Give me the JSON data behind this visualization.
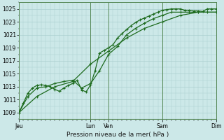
{
  "background_color": "#cce8e8",
  "grid_color": "#aacfcf",
  "line_color": "#1e6b1e",
  "marker_color": "#1e6b1e",
  "ylabel_values": [
    1009,
    1011,
    1013,
    1015,
    1017,
    1019,
    1021,
    1023,
    1025
  ],
  "ylim": [
    1008.0,
    1026.0
  ],
  "xlabel": "Pression niveau de la mer( hPa )",
  "day_labels": [
    "Jeu",
    "Lun",
    "Ven",
    "Sam",
    "Dim"
  ],
  "day_positions": [
    0,
    96,
    120,
    192,
    264
  ],
  "total_hours": 264,
  "vline_color": "#558855",
  "line1_x": [
    0,
    6,
    12,
    18,
    24,
    30,
    36,
    42,
    48,
    54,
    60,
    66,
    72,
    78,
    84,
    90,
    96,
    102,
    108,
    114,
    120,
    126,
    132,
    138,
    144,
    150,
    156,
    162,
    168,
    174,
    180,
    186,
    192,
    198,
    204,
    210,
    216,
    222,
    228,
    234,
    240,
    246,
    252,
    258,
    264
  ],
  "line1_y": [
    1009.0,
    1010.5,
    1012.0,
    1012.8,
    1013.2,
    1013.3,
    1013.2,
    1013.0,
    1012.6,
    1012.3,
    1012.8,
    1013.2,
    1013.5,
    1014.0,
    1012.5,
    1012.2,
    1013.3,
    1015.5,
    1018.2,
    1018.6,
    1019.0,
    1019.5,
    1020.5,
    1021.2,
    1021.8,
    1022.4,
    1022.9,
    1023.3,
    1023.6,
    1023.9,
    1024.2,
    1024.5,
    1024.8,
    1024.9,
    1025.0,
    1025.0,
    1025.0,
    1024.8,
    1024.8,
    1024.7,
    1024.7,
    1024.6,
    1025.0,
    1025.0,
    1025.0
  ],
  "line2_x": [
    0,
    12,
    24,
    36,
    48,
    60,
    72,
    84,
    96,
    108,
    120,
    132,
    144,
    156,
    168,
    180,
    192,
    204,
    216,
    228,
    240,
    252,
    264
  ],
  "line2_y": [
    1009.0,
    1011.5,
    1012.8,
    1013.0,
    1013.5,
    1013.8,
    1014.0,
    1012.8,
    1013.5,
    1015.5,
    1018.0,
    1019.2,
    1021.0,
    1022.0,
    1022.8,
    1023.5,
    1024.0,
    1024.5,
    1024.5,
    1024.5,
    1024.5,
    1024.5,
    1024.5
  ],
  "line3_x": [
    0,
    24,
    48,
    72,
    96,
    120,
    144,
    168,
    192,
    216,
    240,
    264
  ],
  "line3_y": [
    1009.0,
    1011.5,
    1013.0,
    1013.8,
    1016.5,
    1018.5,
    1020.5,
    1022.0,
    1023.0,
    1024.0,
    1024.5,
    1024.5
  ]
}
